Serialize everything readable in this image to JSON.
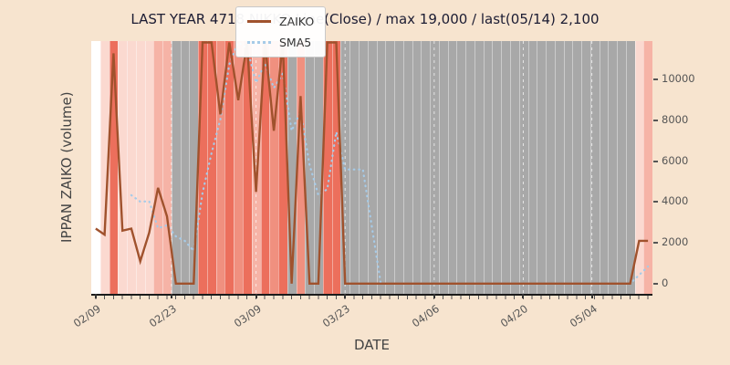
{
  "chart_data": {
    "type": "line",
    "title": "LAST YEAR 4718 NIKKO Line(Close) / max 19,000 / last(05/14) 2,100",
    "xlabel": "DATE",
    "ylabel": "IPPAN ZAIKO (volume)",
    "ylim": [
      -500,
      11900
    ],
    "grid": "vertical white dashed lines at major x ticks",
    "legend_position": "upper center-left",
    "y_ticks": [
      0,
      2000,
      4000,
      6000,
      8000,
      10000
    ],
    "x_ticks": [
      {
        "label": "02/09",
        "i": 0
      },
      {
        "label": "02/23",
        "i": 8.5
      },
      {
        "label": "03/09",
        "i": 18
      },
      {
        "label": "03/23",
        "i": 28
      },
      {
        "label": "04/06",
        "i": 38
      },
      {
        "label": "04/20",
        "i": 48
      },
      {
        "label": "05/04",
        "i": 55.7
      }
    ],
    "x": [
      "02/09",
      "02/10",
      "02/12",
      "02/15",
      "02/16",
      "02/17",
      "02/18",
      "02/19",
      "02/22",
      "02/24",
      "02/25",
      "02/26",
      "03/01",
      "03/02",
      "03/03",
      "03/04",
      "03/05",
      "03/08",
      "03/09",
      "03/10",
      "03/11",
      "03/12",
      "03/15",
      "03/16",
      "03/17",
      "03/18",
      "03/19",
      "03/22",
      "03/23",
      "03/24",
      "03/25",
      "03/26",
      "03/29",
      "03/30",
      "03/31",
      "04/01",
      "04/02",
      "04/05",
      "04/06",
      "04/07",
      "04/08",
      "04/09",
      "04/12",
      "04/13",
      "04/14",
      "04/15",
      "04/16",
      "04/19",
      "04/20",
      "04/21",
      "04/22",
      "04/23",
      "04/26",
      "04/27",
      "04/28",
      "04/30",
      "05/06",
      "05/07",
      "05/10",
      "05/11",
      "05/12",
      "05/13",
      "05/14"
    ],
    "series": [
      {
        "name": "ZAIKO",
        "style": "solid",
        "color": "#a0522d",
        "values": [
          2700,
          2400,
          11300,
          2600,
          2700,
          1100,
          2500,
          4700,
          3300,
          0,
          0,
          0,
          19000,
          13000,
          8300,
          13500,
          9000,
          14000,
          4500,
          13000,
          7500,
          12500,
          0,
          9200,
          0,
          0,
          14000,
          14000,
          0,
          0,
          0,
          0,
          0,
          0,
          0,
          0,
          0,
          0,
          0,
          0,
          0,
          0,
          0,
          0,
          0,
          0,
          0,
          0,
          0,
          0,
          0,
          0,
          0,
          0,
          0,
          0,
          0,
          0,
          0,
          0,
          0,
          2100,
          2100
        ]
      },
      {
        "name": "SMA5",
        "style": "dotted",
        "color": "#a6cbe8",
        "values": [
          null,
          null,
          null,
          null,
          4340,
          4020,
          4040,
          2720,
          2860,
          2320,
          2100,
          1600,
          4460,
          6400,
          8060,
          10760,
          12560,
          11560,
          9860,
          10800,
          9600,
          10300,
          7500,
          8440,
          5840,
          4340,
          4640,
          7440,
          5600,
          5600,
          5600,
          2800,
          0,
          0,
          0,
          0,
          0,
          0,
          0,
          0,
          0,
          0,
          0,
          0,
          0,
          0,
          0,
          0,
          0,
          0,
          0,
          0,
          0,
          0,
          0,
          0,
          0,
          0,
          0,
          0,
          0,
          420,
          840
        ]
      }
    ],
    "bands": [
      "white",
      "p1",
      "p4",
      "p1",
      "p1",
      "p1",
      "p1",
      "p2",
      "p2",
      "gray",
      "gray",
      "gray",
      "p4",
      "p4",
      "p3",
      "p4",
      "p3",
      "p4",
      "p2",
      "p4",
      "p3",
      "p4",
      "gray",
      "p3",
      "gray",
      "gray",
      "p4",
      "p4",
      "gray",
      "gray",
      "gray",
      "gray",
      "gray",
      "gray",
      "gray",
      "gray",
      "gray",
      "gray",
      "gray",
      "gray",
      "gray",
      "gray",
      "gray",
      "gray",
      "gray",
      "gray",
      "gray",
      "gray",
      "gray",
      "gray",
      "gray",
      "gray",
      "gray",
      "gray",
      "gray",
      "gray",
      "gray",
      "gray",
      "gray",
      "gray",
      "gray",
      "p1",
      "p2"
    ],
    "band_palette": {
      "white": "#ffffff",
      "p1": "#fbd9d0",
      "p2": "#f6b3a6",
      "p3": "#f0907f",
      "p4": "#ec6f5c",
      "gray": "#a8a8a8"
    },
    "note_colors": {
      "figure_background": "#f7e4cf",
      "title_text": "#1c1c33",
      "axis_text": "#555555"
    }
  }
}
